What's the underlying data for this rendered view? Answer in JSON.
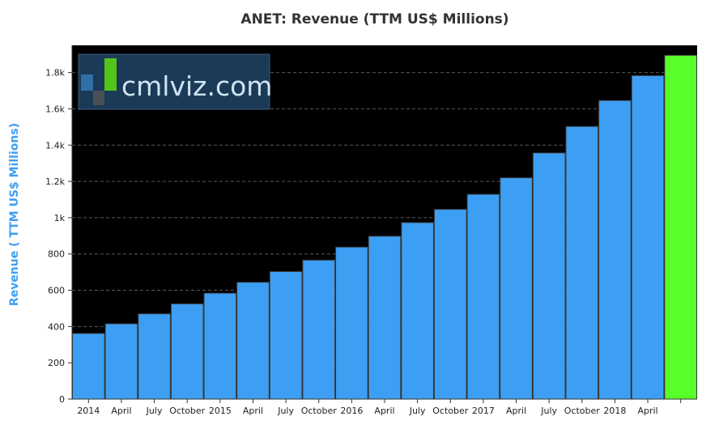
{
  "chart_data": {
    "type": "bar",
    "title": "ANET: Revenue (TTM US$ Millions)",
    "xlabel": "",
    "ylabel": "Revenue ( TTM US$ Millions)",
    "ylim": [
      0,
      1950
    ],
    "y_ticks": [
      0,
      200,
      400,
      600,
      800,
      1000,
      1200,
      1400,
      1600,
      1800
    ],
    "y_tick_labels": [
      "0",
      "200",
      "400",
      "600",
      "800",
      "1k",
      "1.2k",
      "1.4k",
      "1.6k",
      "1.8k"
    ],
    "grid": true,
    "categories": [
      "2014",
      "April",
      "July",
      "October",
      "2015",
      "April",
      "July",
      "October",
      "2016",
      "April",
      "July",
      "October",
      "2017",
      "April",
      "July",
      "October",
      "2018",
      "April",
      ""
    ],
    "values": [
      362,
      415,
      470,
      525,
      584,
      644,
      703,
      766,
      838,
      898,
      973,
      1046,
      1129,
      1220,
      1357,
      1503,
      1646,
      1783,
      1895
    ],
    "highlight_index": 18,
    "colors": {
      "bar": "#3d9ff3",
      "highlight": "#58ff2a",
      "background": "#000000",
      "title": "#333333",
      "ylabel": "#3d9ff3"
    }
  },
  "logo": {
    "text": "cmlviz.com",
    "colors": {
      "bg": "#1b3a57",
      "text": "#cfe3f2",
      "blue": "#2f6fa8",
      "gray": "#4a4f55",
      "green": "#52c41a"
    }
  }
}
